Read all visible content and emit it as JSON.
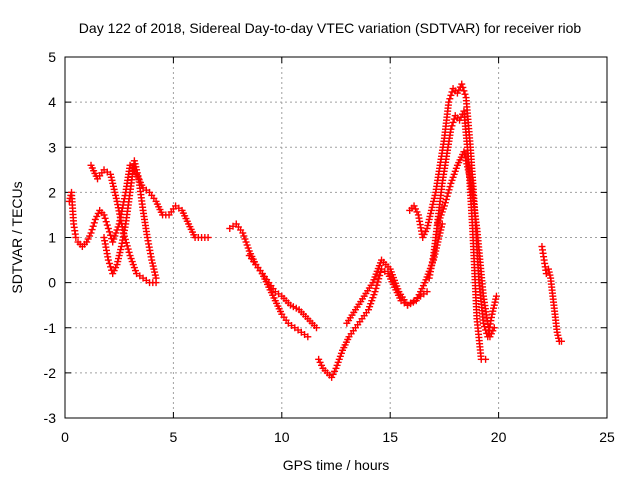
{
  "chart_data": {
    "type": "scatter",
    "title": "Day 122 of 2018, Sidereal Day-to-day VTEC variation (SDTVAR) for receiver riob",
    "xlabel": "GPS time / hours",
    "ylabel": "SDTVAR / TECUs",
    "xlim": [
      0,
      25
    ],
    "ylim": [
      -3,
      5
    ],
    "xticks": [
      0,
      5,
      10,
      15,
      20,
      25
    ],
    "yticks": [
      -3,
      -2,
      -1,
      0,
      1,
      2,
      3,
      4,
      5
    ],
    "grid": true,
    "marker": "plus",
    "color": "#ff0000",
    "series": [
      {
        "name": "s1",
        "x": [
          0.2,
          0.3,
          0.4,
          0.5,
          0.6,
          0.8,
          1.0,
          1.2,
          1.4,
          1.6,
          1.8,
          2.0,
          2.2,
          2.5,
          2.8,
          3.0,
          3.3,
          3.6,
          3.9,
          4.2,
          4.5,
          4.8,
          5.1,
          5.4,
          5.7,
          6.0,
          6.3,
          6.6
        ],
        "y": [
          1.8,
          2.0,
          1.3,
          1.0,
          0.9,
          0.8,
          0.9,
          1.1,
          1.4,
          1.6,
          1.5,
          1.2,
          0.9,
          1.3,
          2.0,
          2.6,
          2.4,
          2.1,
          2.0,
          1.8,
          1.5,
          1.5,
          1.7,
          1.6,
          1.3,
          1.0,
          1.0,
          1.0
        ]
      },
      {
        "name": "s2",
        "x": [
          1.2,
          1.5,
          1.8,
          2.1,
          2.4,
          2.7,
          3.0,
          3.3,
          3.6,
          3.9,
          4.2
        ],
        "y": [
          2.6,
          2.3,
          2.5,
          2.4,
          1.8,
          1.1,
          0.6,
          0.2,
          0.1,
          0.0,
          0.0
        ]
      },
      {
        "name": "s3",
        "x": [
          1.8,
          2.0,
          2.2,
          2.4,
          2.6,
          2.8,
          3.0,
          3.2,
          3.4,
          3.6,
          3.8,
          4.0,
          4.2
        ],
        "y": [
          1.0,
          0.5,
          0.2,
          0.4,
          0.8,
          1.3,
          2.0,
          2.7,
          2.3,
          1.6,
          1.0,
          0.5,
          0.1
        ]
      },
      {
        "name": "s4",
        "x": [
          7.6,
          7.9,
          8.2,
          8.5,
          8.8,
          9.1,
          9.4,
          9.7,
          10.0,
          10.4,
          10.8,
          11.2,
          11.6
        ],
        "y": [
          1.2,
          1.3,
          1.1,
          0.7,
          0.4,
          0.2,
          0.0,
          -0.2,
          -0.3,
          -0.5,
          -0.6,
          -0.8,
          -1.0
        ]
      },
      {
        "name": "s5",
        "x": [
          8.5,
          8.8,
          9.1,
          9.4,
          9.7,
          10.0,
          10.3,
          10.6,
          10.9,
          11.2
        ],
        "y": [
          0.6,
          0.4,
          0.2,
          -0.1,
          -0.4,
          -0.7,
          -0.9,
          -1.0,
          -1.1,
          -1.2
        ]
      },
      {
        "name": "s6",
        "x": [
          11.7,
          11.9,
          12.1,
          12.3,
          12.5,
          12.8,
          13.1,
          13.4,
          13.7,
          14.0,
          14.3,
          14.6,
          14.9,
          15.2,
          15.5,
          15.8,
          16.1,
          16.4,
          16.7
        ],
        "y": [
          -1.7,
          -1.9,
          -2.0,
          -2.1,
          -1.9,
          -1.5,
          -1.2,
          -1.0,
          -0.8,
          -0.6,
          -0.2,
          0.3,
          0.2,
          -0.1,
          -0.4,
          -0.5,
          -0.4,
          -0.3,
          -0.2
        ]
      },
      {
        "name": "s7",
        "x": [
          13.0,
          13.4,
          13.8,
          14.2,
          14.6,
          15.0,
          15.4,
          15.8,
          16.2,
          16.6,
          17.0,
          17.4
        ],
        "y": [
          -0.9,
          -0.6,
          -0.3,
          0.0,
          0.5,
          0.3,
          -0.2,
          -0.5,
          -0.4,
          0.0,
          0.5,
          1.3
        ]
      },
      {
        "name": "s8",
        "x": [
          15.9,
          16.1,
          16.3,
          16.5,
          16.7,
          16.9,
          17.1,
          17.3,
          17.5,
          17.7,
          17.9,
          18.1,
          18.3,
          18.5,
          18.7,
          18.9,
          19.1,
          19.3,
          19.5,
          19.7,
          19.9
        ],
        "y": [
          1.6,
          1.7,
          1.5,
          1.0,
          1.2,
          1.6,
          2.0,
          2.6,
          3.2,
          4.0,
          4.3,
          4.2,
          4.4,
          4.1,
          3.0,
          1.6,
          0.0,
          -0.9,
          -1.2,
          -0.7,
          -0.3
        ]
      },
      {
        "name": "s9",
        "x": [
          16.8,
          17.0,
          17.2,
          17.4,
          17.6,
          17.8,
          18.0,
          18.2,
          18.4,
          18.6,
          18.8,
          19.0,
          19.2,
          19.4
        ],
        "y": [
          0.1,
          0.6,
          1.4,
          2.2,
          2.8,
          3.4,
          3.7,
          3.6,
          3.8,
          2.8,
          1.2,
          -0.8,
          -1.7,
          -1.7
        ]
      },
      {
        "name": "s10",
        "x": [
          17.2,
          17.5,
          17.8,
          18.1,
          18.4,
          18.7,
          19.0,
          19.3,
          19.6,
          19.8
        ],
        "y": [
          1.3,
          1.7,
          2.2,
          2.6,
          2.9,
          2.3,
          1.2,
          -0.3,
          -1.2,
          -1.0
        ]
      },
      {
        "name": "s11",
        "x": [
          22.0,
          22.1,
          22.2,
          22.3,
          22.4,
          22.5,
          22.6,
          22.7,
          22.8,
          22.9
        ],
        "y": [
          0.8,
          0.5,
          0.2,
          0.3,
          0.1,
          -0.3,
          -0.7,
          -1.1,
          -1.3,
          -1.3
        ]
      }
    ]
  }
}
